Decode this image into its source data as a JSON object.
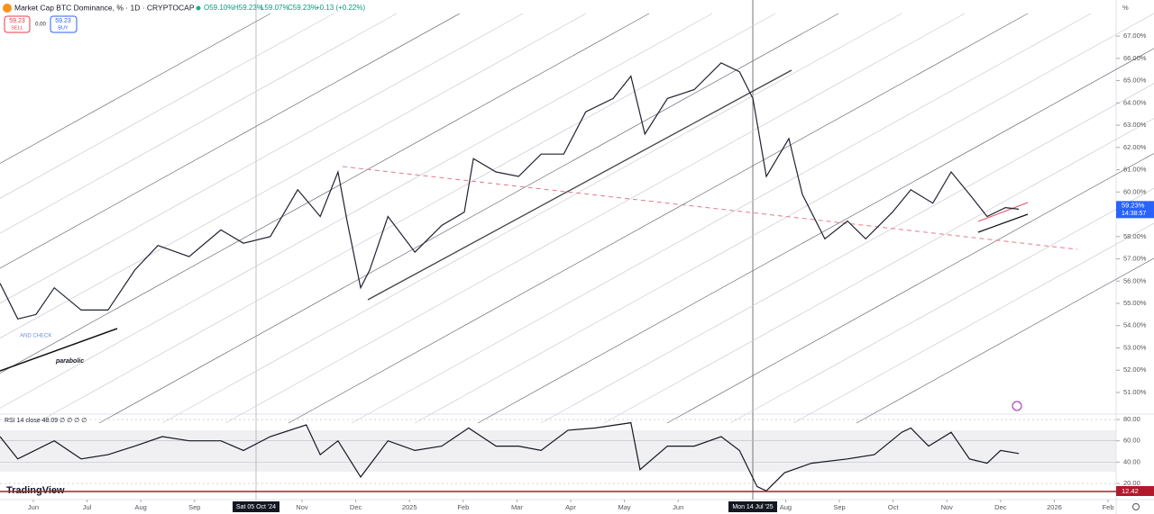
{
  "header": {
    "title": "Market Cap BTC Dominance, % · 1D · CRYPTOCAP",
    "ohlc": [
      "O59.10%",
      "H59.23%",
      "L59.07%",
      "C59.23%",
      "+0.13 (+0.22%)"
    ],
    "sell_price": "59.23",
    "sell": "SELL",
    "spread": "0.00",
    "buy_price": "59.23",
    "buy": "BUY",
    "unit": "%",
    "brand": "TradingView",
    "crosshair_labels": [
      "Sat 05 Oct '24",
      "Mon 14 Jul '25"
    ]
  },
  "chart_data": [
    {
      "type": "line",
      "color": "#1f2230",
      "x": [
        5.38,
        5.71,
        6.05,
        6.39,
        6.89,
        7.39,
        7.89,
        8.32,
        8.9,
        9.49,
        9.91,
        10.41,
        10.92,
        11.34,
        11.67,
        11.84,
        12.09,
        12.26,
        12.6,
        13.1,
        13.6,
        14.02,
        14.19,
        14.61,
        15.03,
        15.45,
        15.87,
        16.28,
        16.79,
        17.12,
        17.38,
        17.8,
        18.3,
        18.8,
        19.14,
        19.39,
        19.64,
        20.06,
        20.31,
        20.73,
        21.15,
        21.49,
        21.99,
        22.33,
        22.74,
        23.08,
        23.42,
        23.75,
        24.09,
        24.34
      ],
      "values": [
        55.9,
        54.3,
        54.5,
        55.7,
        54.7,
        54.7,
        56.5,
        57.6,
        57.1,
        58.3,
        57.7,
        58.0,
        60.1,
        58.9,
        60.9,
        58.7,
        55.7,
        56.5,
        58.9,
        57.3,
        58.5,
        59.1,
        61.5,
        60.9,
        60.7,
        61.7,
        61.7,
        63.6,
        64.2,
        65.2,
        62.6,
        64.2,
        64.6,
        65.8,
        65.4,
        64.2,
        60.7,
        62.4,
        59.9,
        57.9,
        58.7,
        57.9,
        59.1,
        60.1,
        59.5,
        60.9,
        59.9,
        58.9,
        59.3,
        59.23
      ],
      "xlim": [
        5.38,
        26.15
      ],
      "ylim": [
        50.03,
        68.62
      ],
      "yticks": [
        {
          "value": 51,
          "label": "51.00%"
        },
        {
          "value": 52,
          "label": "52.00%"
        },
        {
          "value": 53,
          "label": "53.00%"
        },
        {
          "value": 54,
          "label": "54.00%"
        },
        {
          "value": 55,
          "label": "55.00%"
        },
        {
          "value": 56,
          "label": "56.00%"
        },
        {
          "value": 57,
          "label": "57.00%"
        },
        {
          "value": 58,
          "label": "58.00%"
        },
        {
          "value": 59,
          "label": "59.00%"
        },
        {
          "value": 60,
          "label": "60.00%"
        },
        {
          "value": 61,
          "label": "61.00%"
        },
        {
          "value": 62,
          "label": "62.00%"
        },
        {
          "value": 63,
          "label": "63.00%"
        },
        {
          "value": 64,
          "label": "64.00%"
        },
        {
          "value": 65,
          "label": "65.00%"
        },
        {
          "value": 66,
          "label": "66.00%"
        },
        {
          "value": 67,
          "label": "67.00%"
        }
      ],
      "last_label": "59.23%",
      "countdown": "14:38:57",
      "annotations": [
        "parabolic",
        "AND CHECK"
      ]
    },
    {
      "type": "line",
      "title": "RSI 14 close 48.09 ∅ ∅ ∅ ∅",
      "color": "#131722",
      "x": [
        5.38,
        5.71,
        6.39,
        6.89,
        7.39,
        7.89,
        8.4,
        8.9,
        9.49,
        9.91,
        10.41,
        11.08,
        11.34,
        11.67,
        12.09,
        12.6,
        13.1,
        13.6,
        14.1,
        14.61,
        15.03,
        15.45,
        15.95,
        16.45,
        17.12,
        17.29,
        17.8,
        18.3,
        18.8,
        19.14,
        19.47,
        19.64,
        19.98,
        20.48,
        21.15,
        21.65,
        22.16,
        22.33,
        22.66,
        23.08,
        23.42,
        23.75,
        24.0,
        24.34
      ],
      "values": [
        64,
        43,
        60,
        43,
        47,
        55,
        64,
        60,
        60,
        51,
        64,
        75,
        47,
        60,
        26,
        60,
        51,
        55,
        72,
        55,
        55,
        51,
        70,
        72,
        77,
        33,
        55,
        55,
        64,
        51,
        17,
        13,
        30,
        39,
        43,
        47,
        68,
        72,
        55,
        68,
        43,
        39,
        51,
        48.09
      ],
      "xlim": [
        5.38,
        26.15
      ],
      "ylim": [
        12,
        85.1
      ],
      "yticks": [
        {
          "value": 20,
          "label": "20.00"
        },
        {
          "value": 40,
          "label": "40.00"
        },
        {
          "value": 60,
          "label": "60.00"
        },
        {
          "value": 80,
          "label": "80.00"
        }
      ],
      "xticks": [
        {
          "value": 6,
          "label": "Jun"
        },
        {
          "value": 7,
          "label": "Jul"
        },
        {
          "value": 8,
          "label": "Aug"
        },
        {
          "value": 9,
          "label": "Sep"
        },
        {
          "value": 11,
          "label": "Nov"
        },
        {
          "value": 12,
          "label": "Dec"
        },
        {
          "value": 13,
          "label": "2025"
        },
        {
          "value": 14,
          "label": "Feb"
        },
        {
          "value": 15,
          "label": "Mar"
        },
        {
          "value": 16,
          "label": "Apr"
        },
        {
          "value": 17,
          "label": "May"
        },
        {
          "value": 18,
          "label": "Jun"
        },
        {
          "value": 20,
          "label": "Aug"
        },
        {
          "value": 21,
          "label": "Sep"
        },
        {
          "value": 22,
          "label": "Oct"
        },
        {
          "value": 23,
          "label": "Nov"
        },
        {
          "value": 24,
          "label": "Dec"
        },
        {
          "value": 25,
          "label": "2026"
        },
        {
          "value": 26,
          "label": "Feb"
        }
      ],
      "hline": 12.42
    }
  ]
}
